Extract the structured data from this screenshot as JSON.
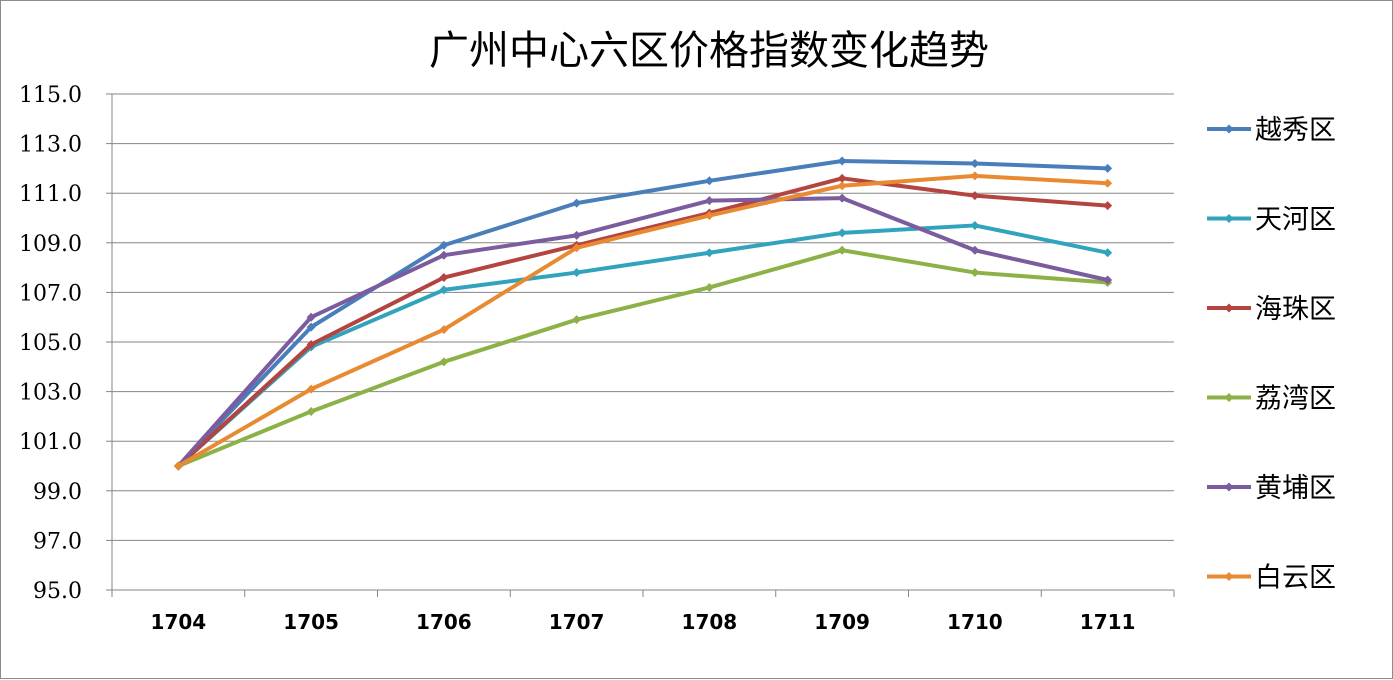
{
  "chart_data": {
    "type": "line",
    "title": "广州中心六区价格指数变化趋势",
    "xlabel": "",
    "ylabel": "",
    "x": [
      "1704",
      "1705",
      "1706",
      "1707",
      "1708",
      "1709",
      "1710",
      "1711"
    ],
    "ylim": [
      95.0,
      115.0
    ],
    "yticks": [
      "95.0",
      "97.0",
      "99.0",
      "101.0",
      "103.0",
      "105.0",
      "107.0",
      "109.0",
      "111.0",
      "113.0",
      "115.0"
    ],
    "grid": true,
    "legend_position": "right",
    "series": [
      {
        "name": "越秀区",
        "color": "#4a7ebb",
        "values": [
          100.0,
          105.6,
          108.9,
          110.6,
          111.5,
          112.3,
          112.2,
          112.0
        ]
      },
      {
        "name": "天河区",
        "color": "#31a3bd",
        "values": [
          100.0,
          104.8,
          107.1,
          107.8,
          108.6,
          109.4,
          109.7,
          108.6
        ]
      },
      {
        "name": "海珠区",
        "color": "#b4443f",
        "values": [
          100.0,
          104.9,
          107.6,
          108.9,
          110.2,
          111.6,
          110.9,
          110.5
        ]
      },
      {
        "name": "荔湾区",
        "color": "#8db047",
        "values": [
          100.0,
          102.2,
          104.2,
          105.9,
          107.2,
          108.7,
          107.8,
          107.4
        ]
      },
      {
        "name": "黄埔区",
        "color": "#7b5c9e",
        "values": [
          100.0,
          106.0,
          108.5,
          109.3,
          110.7,
          110.8,
          108.7,
          107.5
        ]
      },
      {
        "name": "白云区",
        "color": "#e88a31",
        "values": [
          100.0,
          103.1,
          105.5,
          108.8,
          110.1,
          111.3,
          111.7,
          111.4
        ]
      }
    ]
  }
}
